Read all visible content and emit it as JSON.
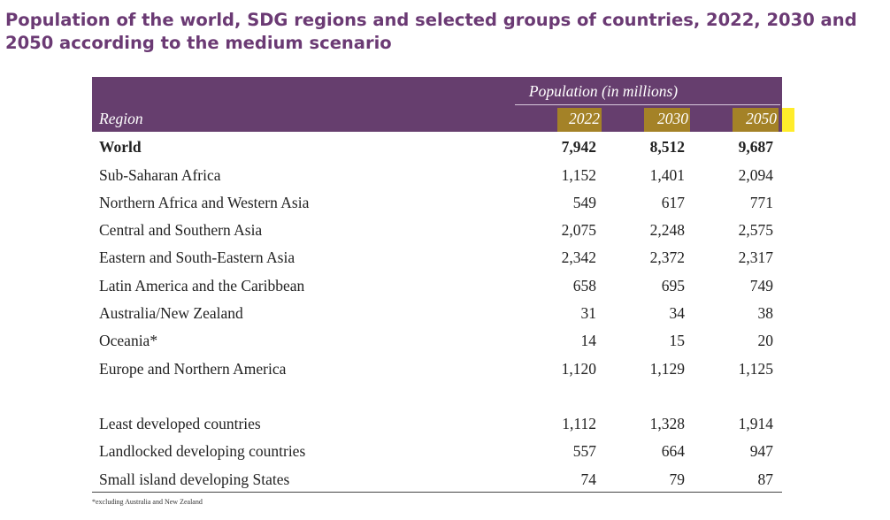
{
  "title": "Population of the world, SDG regions and selected groups of countries, 2022, 2030 and 2050 according to the medium scenario",
  "header": {
    "population_label": "Population (in millions)",
    "region_label": "Region",
    "years": [
      "2022",
      "2030",
      "2050"
    ]
  },
  "rows": [
    {
      "region": "World",
      "v2022": "7,942",
      "v2030": "8,512",
      "v2050": "9,687"
    },
    {
      "region": "Sub-Saharan Africa",
      "v2022": "1,152",
      "v2030": "1,401",
      "v2050": "2,094"
    },
    {
      "region": "Northern Africa and Western Asia",
      "v2022": "549",
      "v2030": "617",
      "v2050": "771"
    },
    {
      "region": "Central and Southern Asia",
      "v2022": "2,075",
      "v2030": "2,248",
      "v2050": "2,575"
    },
    {
      "region": "Eastern and South-Eastern Asia",
      "v2022": "2,342",
      "v2030": "2,372",
      "v2050": "2,317"
    },
    {
      "region": "Latin America and the Caribbean",
      "v2022": "658",
      "v2030": "695",
      "v2050": "749"
    },
    {
      "region": "Australia/New Zealand",
      "v2022": "31",
      "v2030": "34",
      "v2050": "38"
    },
    {
      "region": "Oceania*",
      "v2022": "14",
      "v2030": "15",
      "v2050": "20"
    },
    {
      "region": "Europe and Northern America",
      "v2022": "1,120",
      "v2030": "1,129",
      "v2050": "1,125"
    },
    {
      "region": "Least developed countries",
      "v2022": "1,112",
      "v2030": "1,328",
      "v2050": "1,914"
    },
    {
      "region": "Landlocked developing countries",
      "v2022": "557",
      "v2030": "664",
      "v2050": "947"
    },
    {
      "region": "Small island developing States",
      "v2022": "74",
      "v2030": "79",
      "v2050": "87"
    }
  ],
  "footnote": "*excluding Australia and New Zealand",
  "colors": {
    "header_bg": "#663e6e",
    "title": "#6b3a74",
    "highlight": "#ffec2b"
  }
}
